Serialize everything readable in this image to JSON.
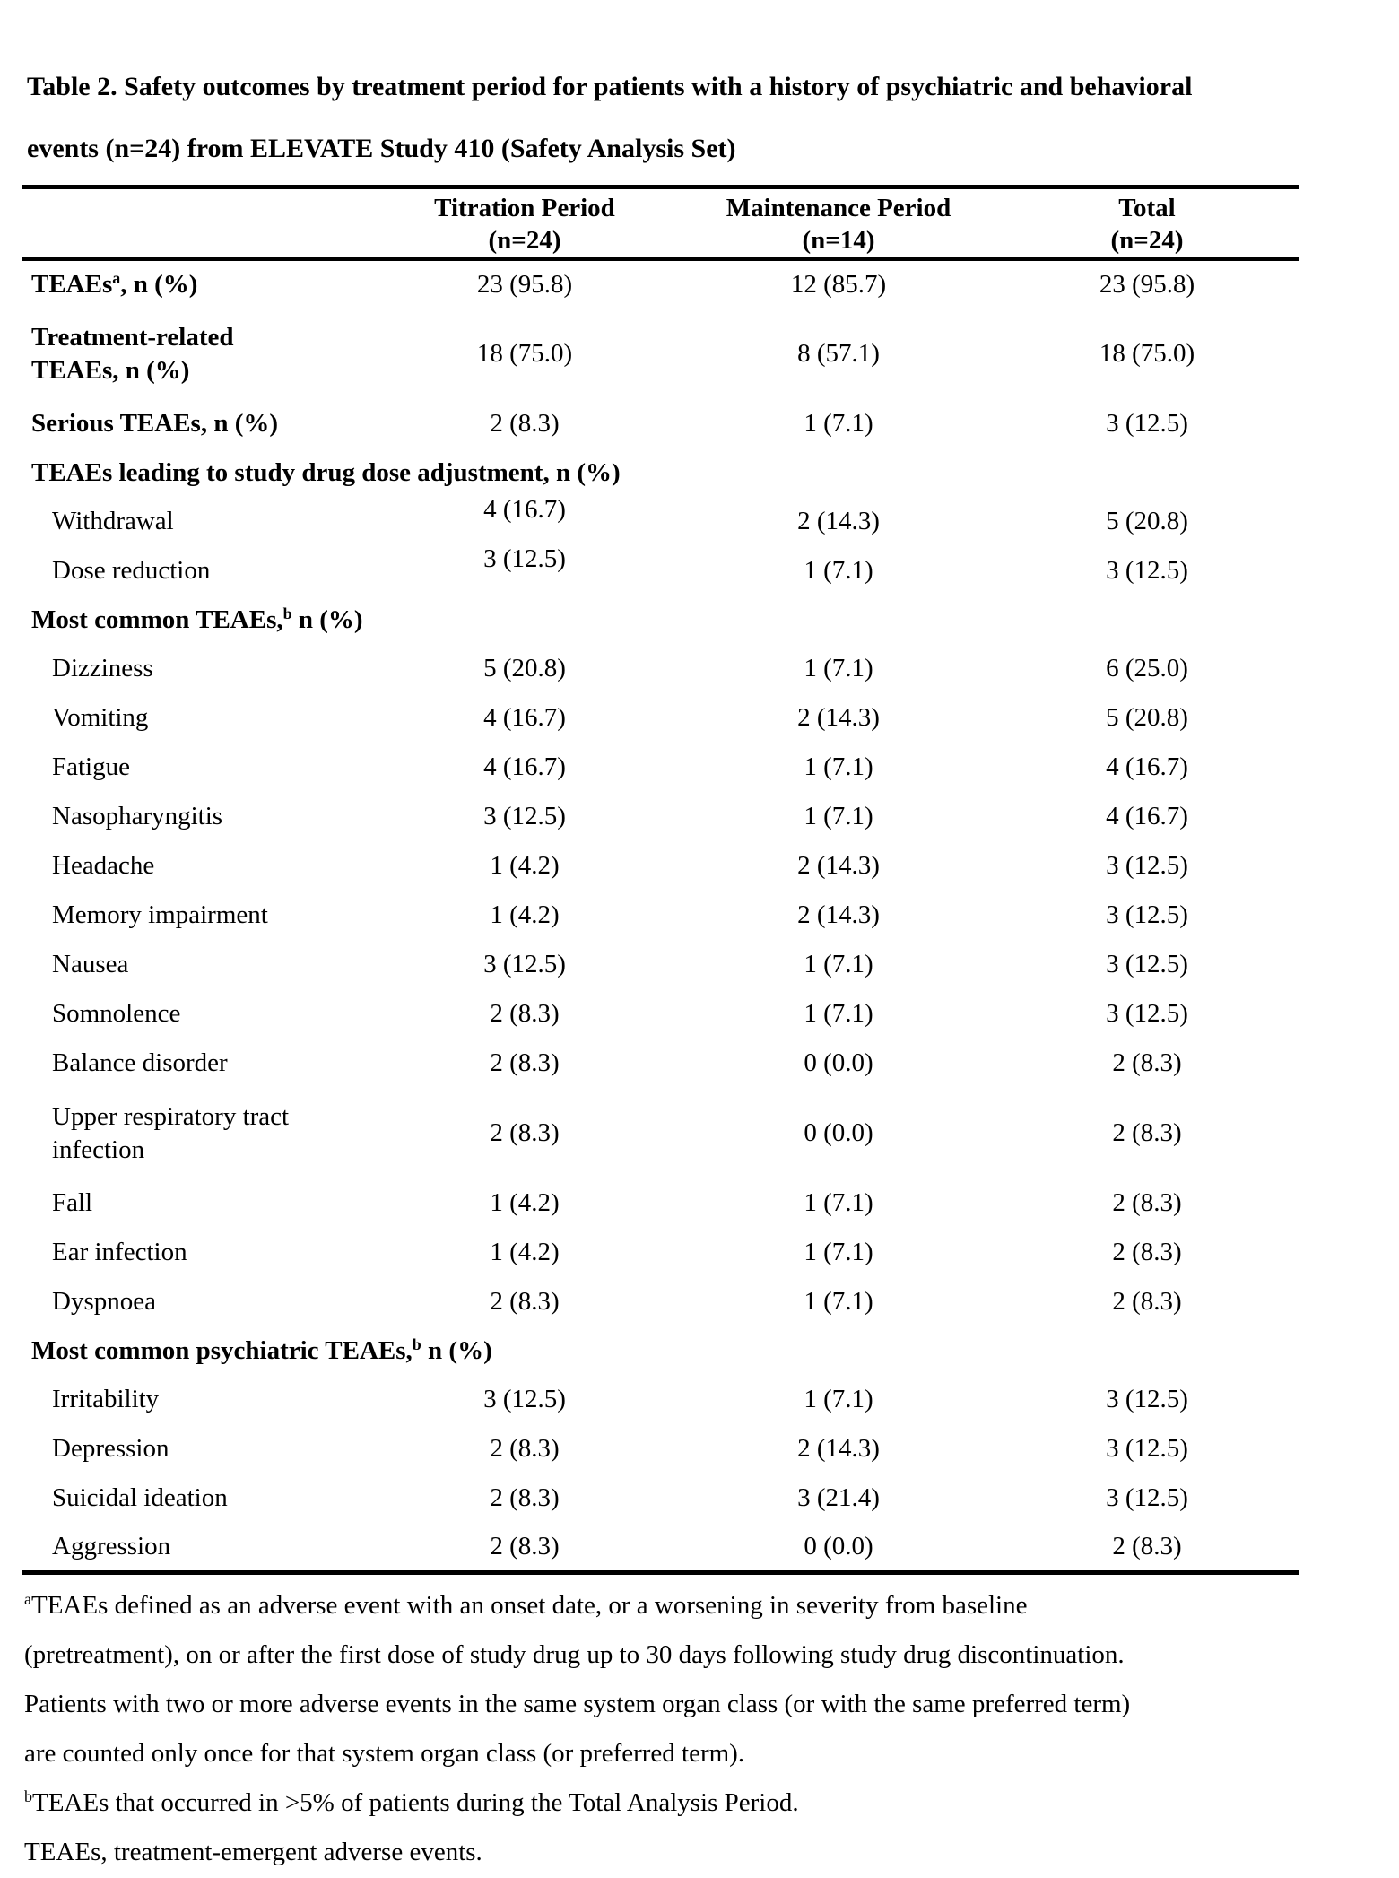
{
  "page": {
    "background_color": "#ffffff",
    "text_color": "#000000"
  },
  "title": {
    "lines": [
      "Table 2. Safety outcomes by treatment period for patients with a history of psychiatric and behavioral",
      "events (n=24) from ELEVATE Study 410 (Safety Analysis Set)"
    ]
  },
  "table": {
    "columns": [
      {
        "line1": "Titration Period",
        "line2": "(n=24)"
      },
      {
        "line1": "Maintenance Period",
        "line2": "(n=14)"
      },
      {
        "line1": "Total",
        "line2": "(n=24)"
      }
    ],
    "rows": [
      {
        "type": "data",
        "bold": true,
        "indent": false,
        "label": "TEAEs^a, n (%)",
        "values": [
          "23 (95.8)",
          "12 (85.7)",
          "23 (95.8)"
        ]
      },
      {
        "type": "data",
        "bold": true,
        "indent": false,
        "tall": true,
        "label": "Treatment-related\nTEAEs, n (%)",
        "values": [
          "18 (75.0)",
          "8 (57.1)",
          "18 (75.0)"
        ]
      },
      {
        "type": "data",
        "bold": true,
        "indent": false,
        "label": "Serious TEAEs, n (%)",
        "values": [
          "2 (8.3)",
          "1 (7.1)",
          "3 (12.5)"
        ]
      },
      {
        "type": "section",
        "label": "TEAEs leading to study drug dose adjustment, n (%)"
      },
      {
        "type": "data",
        "indent": true,
        "raise_first": true,
        "label": "Withdrawal",
        "values": [
          "4 (16.7)",
          "2 (14.3)",
          "5 (20.8)"
        ]
      },
      {
        "type": "data",
        "indent": true,
        "raise_first": true,
        "label": "Dose reduction",
        "values": [
          "3 (12.5)",
          "1 (7.1)",
          "3 (12.5)"
        ]
      },
      {
        "type": "section",
        "label": "Most common TEAEs,^b n (%)"
      },
      {
        "type": "data",
        "indent": true,
        "label": "Dizziness",
        "values": [
          "5 (20.8)",
          "1 (7.1)",
          "6 (25.0)"
        ]
      },
      {
        "type": "data",
        "indent": true,
        "label": "Vomiting",
        "values": [
          "4 (16.7)",
          "2 (14.3)",
          "5 (20.8)"
        ]
      },
      {
        "type": "data",
        "indent": true,
        "label": "Fatigue",
        "values": [
          "4 (16.7)",
          "1 (7.1)",
          "4 (16.7)"
        ]
      },
      {
        "type": "data",
        "indent": true,
        "label": "Nasopharyngitis",
        "values": [
          "3 (12.5)",
          "1 (7.1)",
          "4 (16.7)"
        ]
      },
      {
        "type": "data",
        "indent": true,
        "label": "Headache",
        "values": [
          "1 (4.2)",
          "2 (14.3)",
          "3 (12.5)"
        ]
      },
      {
        "type": "data",
        "indent": true,
        "label": "Memory impairment",
        "values": [
          "1 (4.2)",
          "2 (14.3)",
          "3 (12.5)"
        ]
      },
      {
        "type": "data",
        "indent": true,
        "label": "Nausea",
        "values": [
          "3 (12.5)",
          "1 (7.1)",
          "3 (12.5)"
        ]
      },
      {
        "type": "data",
        "indent": true,
        "label": "Somnolence",
        "values": [
          "2 (8.3)",
          "1 (7.1)",
          "3 (12.5)"
        ]
      },
      {
        "type": "data",
        "indent": true,
        "label": "Balance disorder",
        "values": [
          "2 (8.3)",
          "0 (0.0)",
          "2 (8.3)"
        ]
      },
      {
        "type": "data",
        "indent": true,
        "tall": true,
        "label": "Upper respiratory tract\ninfection",
        "values": [
          "2 (8.3)",
          "0 (0.0)",
          "2 (8.3)"
        ]
      },
      {
        "type": "data",
        "indent": true,
        "label": "Fall",
        "values": [
          "1 (4.2)",
          "1 (7.1)",
          "2 (8.3)"
        ]
      },
      {
        "type": "data",
        "indent": true,
        "label": "Ear infection",
        "values": [
          "1 (4.2)",
          "1 (7.1)",
          "2 (8.3)"
        ]
      },
      {
        "type": "data",
        "indent": true,
        "label": "Dyspnoea",
        "values": [
          "2 (8.3)",
          "1 (7.1)",
          "2 (8.3)"
        ]
      },
      {
        "type": "section",
        "label": "Most common psychiatric TEAEs,^b n (%)"
      },
      {
        "type": "data",
        "indent": true,
        "label": "Irritability",
        "values": [
          "3 (12.5)",
          "1 (7.1)",
          "3 (12.5)"
        ]
      },
      {
        "type": "data",
        "indent": true,
        "label": "Depression",
        "values": [
          "2 (8.3)",
          "2 (14.3)",
          "3 (12.5)"
        ]
      },
      {
        "type": "data",
        "indent": true,
        "label": "Suicidal ideation",
        "values": [
          "2 (8.3)",
          "3 (21.4)",
          "3 (12.5)"
        ]
      },
      {
        "type": "data",
        "indent": true,
        "label": "Aggression",
        "values": [
          "2 (8.3)",
          "0 (0.0)",
          "2 (8.3)"
        ]
      }
    ]
  },
  "footnotes": {
    "lines": [
      {
        "sup": "a",
        "text": "TEAEs defined as an adverse event with an onset date, or a worsening in severity from baseline"
      },
      {
        "sup": "",
        "text": "(pretreatment), on or after the first dose of study drug up to 30 days following study drug discontinuation."
      },
      {
        "sup": "",
        "text": "Patients with two or more adverse events in the same system organ class (or with the same preferred term)"
      },
      {
        "sup": "",
        "text": "are counted only once for that system organ class (or preferred term)."
      },
      {
        "sup": "b",
        "text": "TEAEs that occurred in >5% of patients during the Total Analysis Period."
      },
      {
        "sup": "",
        "text": "TEAEs, treatment-emergent adverse events."
      }
    ]
  }
}
